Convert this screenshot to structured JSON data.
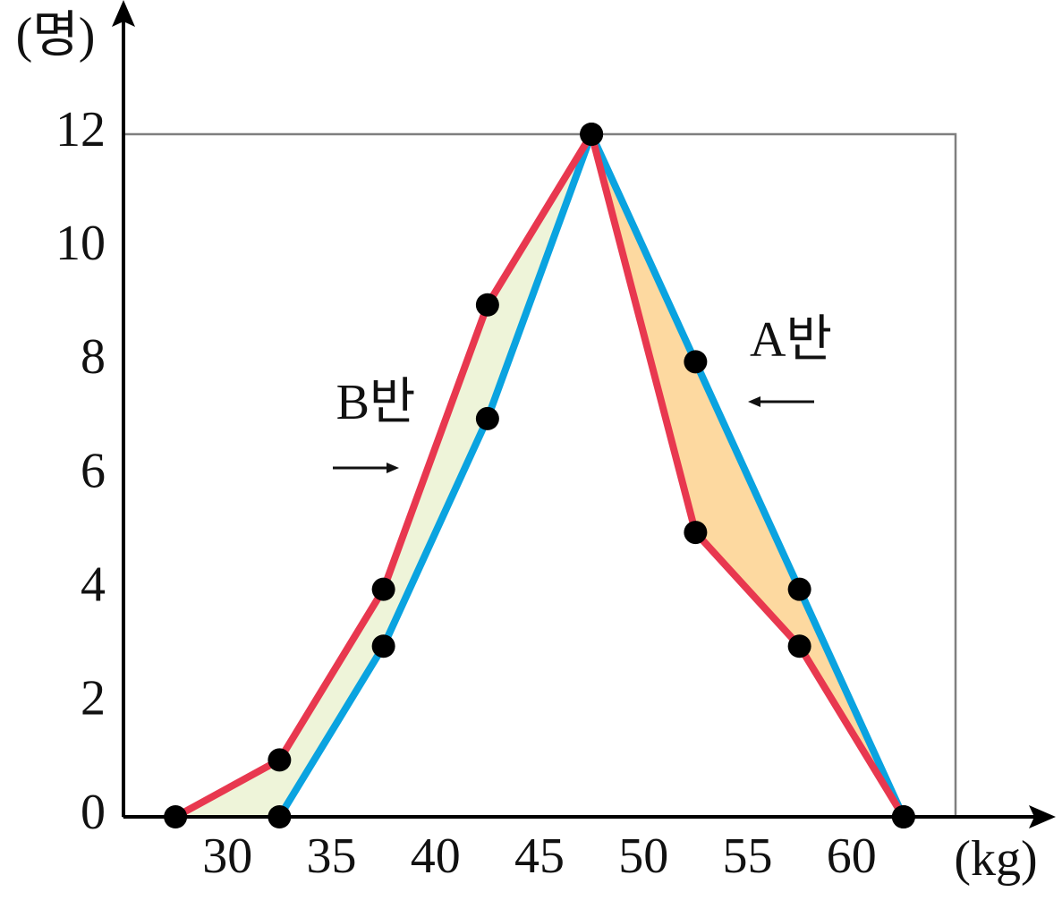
{
  "chart_data": {
    "type": "line",
    "xlabel": "(kg)",
    "ylabel": "(명)",
    "xlim": [
      25,
      65
    ],
    "xticks": [
      30,
      35,
      40,
      45,
      50,
      55,
      60
    ],
    "xgrid": [
      25,
      30,
      35,
      40,
      45,
      50,
      55,
      60,
      65
    ],
    "ylim": [
      0,
      12
    ],
    "yticks": [
      0,
      2,
      4,
      6,
      8,
      10,
      12
    ],
    "yminorticks": [
      1,
      3,
      5,
      7,
      9,
      11
    ],
    "grid": true,
    "grid_color": "#7f7f7f",
    "point_color": "#000000",
    "fill_left": "#eef4d9",
    "fill_right": "#fdd9a0",
    "series": [
      {
        "name": "A반",
        "color": "#0aa3e0",
        "x": [
          32.5,
          37.5,
          42.5,
          47.5,
          52.5,
          57.5,
          62.5
        ],
        "values": [
          0,
          3,
          7,
          12,
          8,
          4,
          0
        ]
      },
      {
        "name": "B반",
        "color": "#e8384f",
        "x": [
          27.5,
          32.5,
          37.5,
          42.5,
          47.5,
          52.5,
          57.5,
          62.5
        ],
        "values": [
          0,
          1,
          4,
          9,
          12,
          5,
          3,
          0
        ]
      }
    ]
  }
}
